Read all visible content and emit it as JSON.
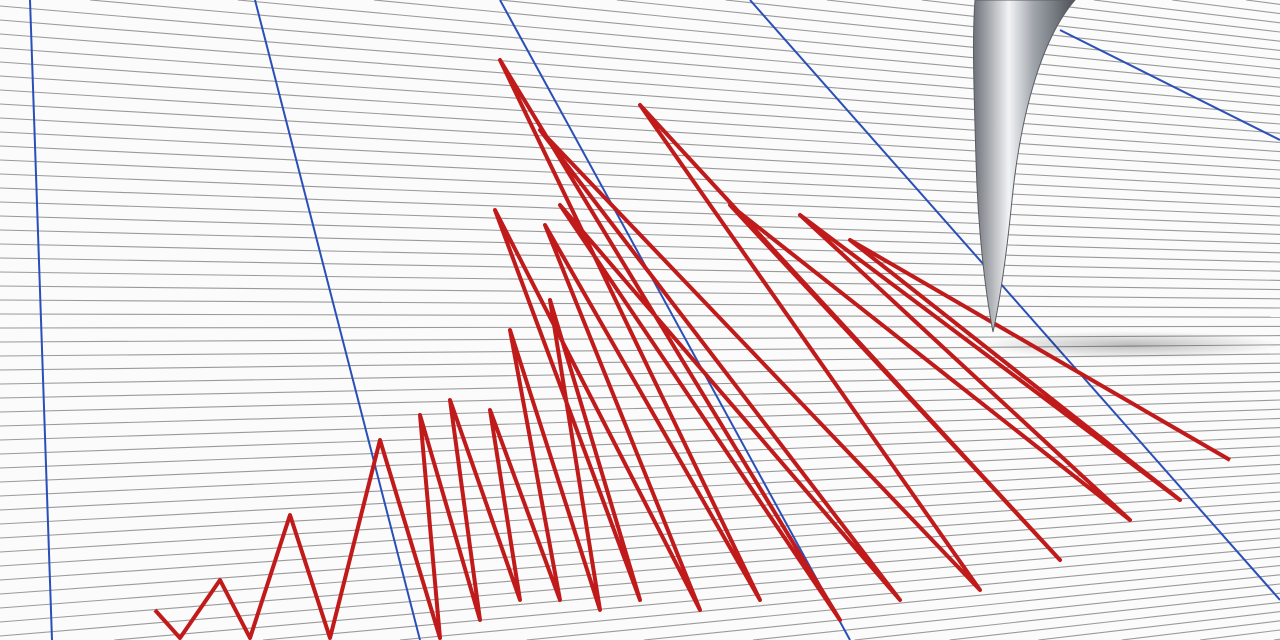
{
  "scene": {
    "subject": "seismograph",
    "colors": {
      "paper": "#fbfbfb",
      "grid_line": "#9a9a9a",
      "blue_line": "#2a4fb8",
      "trace": "#c01a1a",
      "needle": "#b8bcc2"
    }
  }
}
